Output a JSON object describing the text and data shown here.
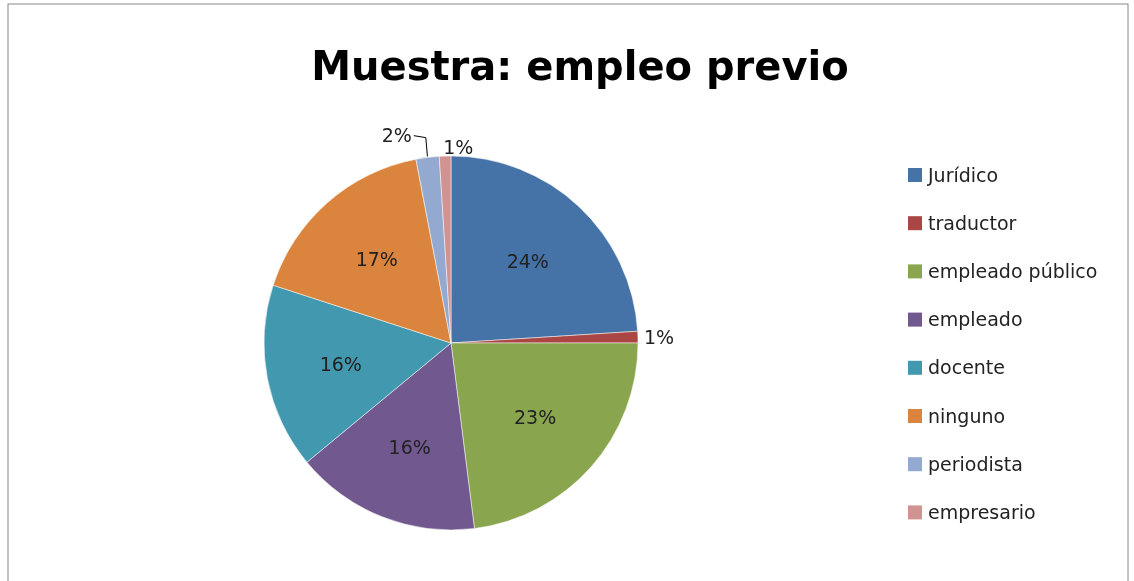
{
  "chart_data": {
    "type": "pie",
    "title": "Muestra: empleo previo",
    "categories": [
      "Jurídico",
      "traductor",
      "empleado público",
      "empleado",
      "docente",
      "ninguno",
      "periodista",
      "empresario"
    ],
    "values": [
      24,
      1,
      23,
      16,
      16,
      17,
      2,
      1
    ],
    "colors": [
      "#4572a7",
      "#aa4643",
      "#89a54e",
      "#71588f",
      "#4198af",
      "#db843d",
      "#93a9cf",
      "#d19392"
    ],
    "value_labels": [
      "24%",
      "1%",
      "23%",
      "16%",
      "16%",
      "17%",
      "2%",
      "1%"
    ],
    "legend": "right"
  }
}
